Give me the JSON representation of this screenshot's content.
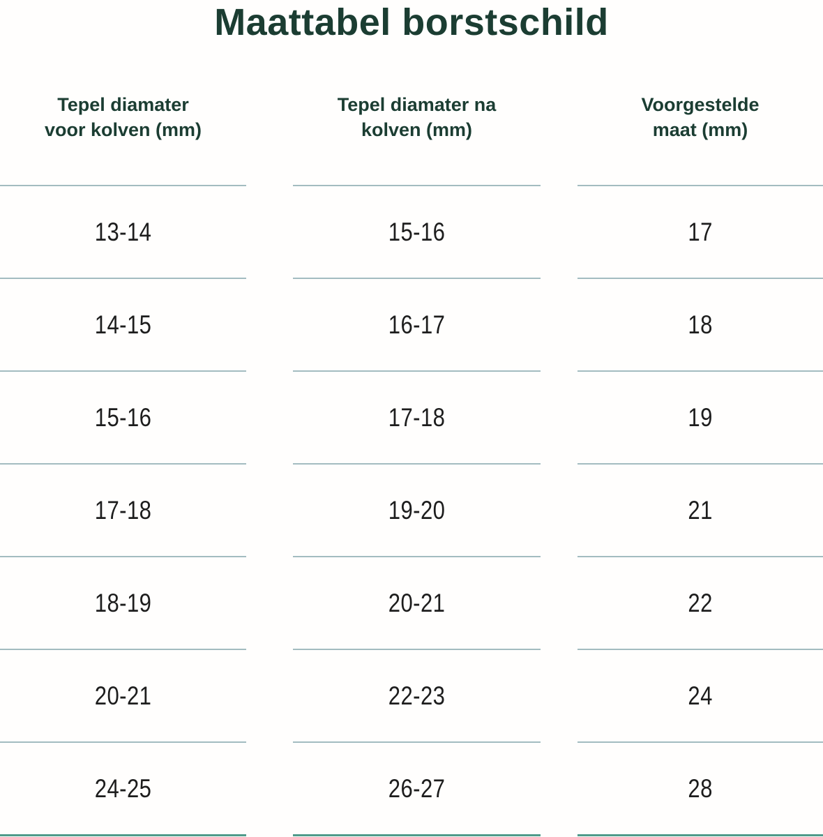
{
  "page": {
    "title": "Maattabel borstschild"
  },
  "table": {
    "headers": [
      {
        "line1": "Tepel diamater",
        "line2": "voor kolven (mm)"
      },
      {
        "line1": "Tepel diamater na",
        "line2": "kolven (mm)"
      },
      {
        "line1": "Voorgestelde",
        "line2": "maat (mm)"
      }
    ],
    "rows": [
      [
        "13-14",
        "15-16",
        "17"
      ],
      [
        "14-15",
        "16-17",
        "18"
      ],
      [
        "15-16",
        "17-18",
        "19"
      ],
      [
        "17-18",
        "19-20",
        "21"
      ],
      [
        "18-19",
        "20-21",
        "22"
      ],
      [
        "20-21",
        "22-23",
        "24"
      ],
      [
        "24-25",
        "26-27",
        "28"
      ]
    ]
  },
  "colors": {
    "heading_green": "#1b3d32",
    "cell_text": "#1d1d1d",
    "row_divider": "#a3bcc0",
    "bottom_divider": "#4f9b8a",
    "background": "#fffefd"
  },
  "chart_data": {
    "type": "table",
    "title": "Maattabel borstschild",
    "columns": [
      "Tepel diamater voor kolven (mm)",
      "Tepel diamater na kolven (mm)",
      "Voorgestelde maat (mm)"
    ],
    "rows": [
      [
        "13-14",
        "15-16",
        "17"
      ],
      [
        "14-15",
        "16-17",
        "18"
      ],
      [
        "15-16",
        "17-18",
        "19"
      ],
      [
        "17-18",
        "19-20",
        "21"
      ],
      [
        "18-19",
        "20-21",
        "22"
      ],
      [
        "20-21",
        "22-23",
        "24"
      ],
      [
        "24-25",
        "26-27",
        "28"
      ]
    ],
    "layout": {
      "grid": "horizontal row dividers only, per-column segments",
      "header_position": "top"
    }
  }
}
